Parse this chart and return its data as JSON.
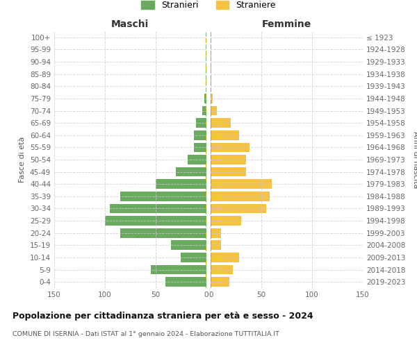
{
  "age_groups": [
    "0-4",
    "5-9",
    "10-14",
    "15-19",
    "20-24",
    "25-29",
    "30-34",
    "35-39",
    "40-44",
    "45-49",
    "50-54",
    "55-59",
    "60-64",
    "65-69",
    "70-74",
    "75-79",
    "80-84",
    "85-89",
    "90-94",
    "95-99",
    "100+"
  ],
  "birth_years": [
    "2019-2023",
    "2014-2018",
    "2009-2013",
    "2004-2008",
    "1999-2003",
    "1994-1998",
    "1989-1993",
    "1984-1988",
    "1979-1983",
    "1974-1978",
    "1969-1973",
    "1964-1968",
    "1959-1963",
    "1954-1958",
    "1949-1953",
    "1944-1948",
    "1939-1943",
    "1934-1938",
    "1929-1933",
    "1924-1928",
    "≤ 1923"
  ],
  "males": [
    40,
    55,
    25,
    35,
    85,
    100,
    95,
    85,
    50,
    30,
    18,
    12,
    12,
    10,
    4,
    2,
    0,
    0,
    0,
    0,
    0
  ],
  "females": [
    18,
    22,
    28,
    10,
    10,
    30,
    55,
    58,
    60,
    35,
    35,
    38,
    28,
    20,
    6,
    2,
    0,
    0,
    0,
    0,
    0
  ],
  "male_color": "#6aaa5e",
  "female_color": "#f5c242",
  "background_color": "#ffffff",
  "grid_color": "#cccccc",
  "title": "Popolazione per cittadinanza straniera per età e sesso - 2024",
  "subtitle": "COMUNE DI ISERNIA - Dati ISTAT al 1° gennaio 2024 - Elaborazione TUTTITALIA.IT",
  "xlabel_left": "Maschi",
  "xlabel_right": "Femmine",
  "ylabel_left": "Fasce di età",
  "ylabel_right": "Anni di nascita",
  "legend_male": "Stranieri",
  "legend_female": "Straniere",
  "xlim": 150,
  "tick_color": "#666666",
  "center_line_color_green": "#6aaa5e",
  "center_line_color_gold": "#c8a800"
}
